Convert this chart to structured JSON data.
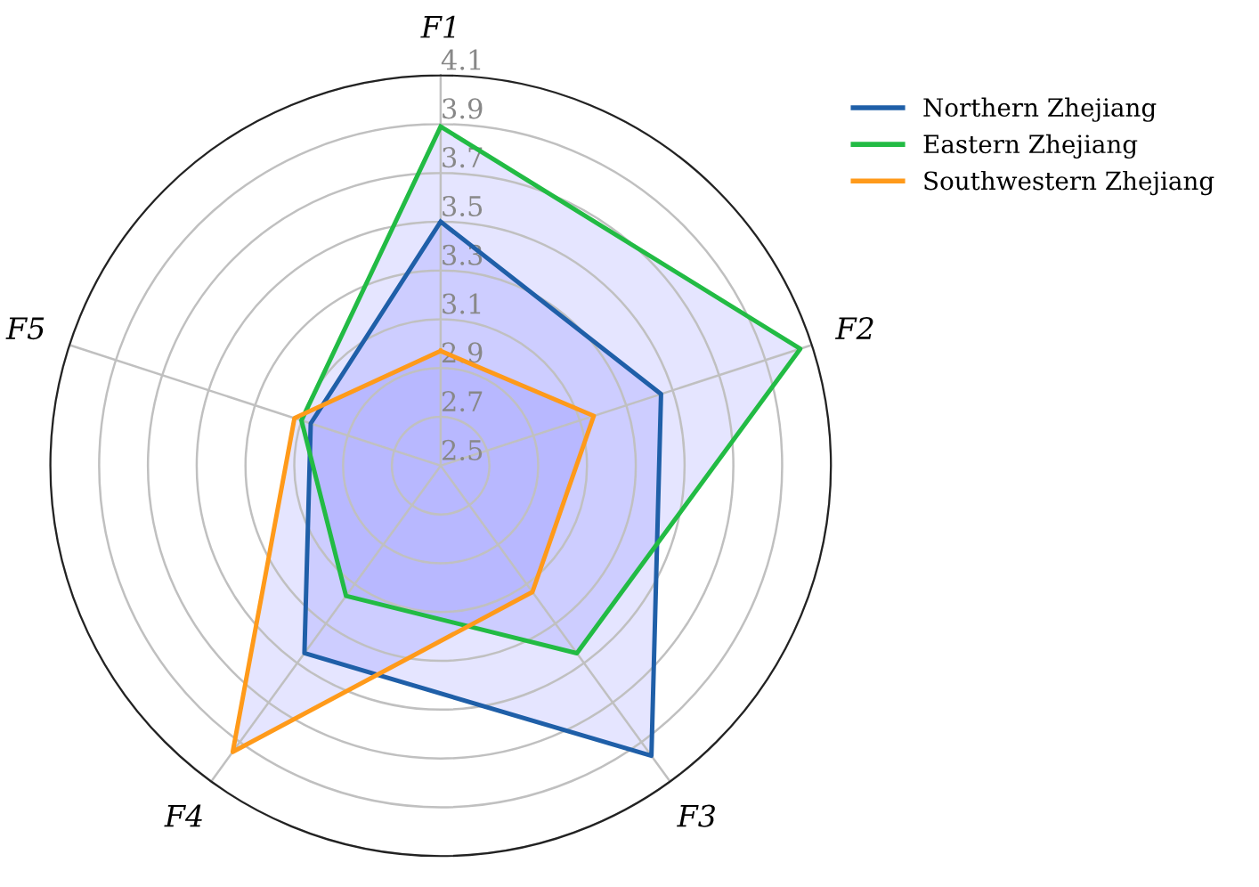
{
  "chart_data": {
    "type": "radar",
    "categories": [
      "F1",
      "F2",
      "F3",
      "F4",
      "F5"
    ],
    "ylim": [
      2.5,
      4.1
    ],
    "yticks": [
      2.5,
      2.7,
      2.9,
      3.1,
      3.3,
      3.5,
      3.7,
      3.9,
      4.1
    ],
    "grid": true,
    "legend": "top right",
    "series": [
      {
        "name": "Northern Zhejiang",
        "color": "#1f5fa8",
        "values": [
          3.5,
          3.45,
          3.97,
          3.45,
          3.06
        ]
      },
      {
        "name": "Eastern Zhejiang",
        "color": "#22bb44",
        "values": [
          3.89,
          4.05,
          3.45,
          3.16,
          3.1
        ]
      },
      {
        "name": "Southwestern Zhejiang",
        "color": "#ff9a1a",
        "values": [
          2.97,
          3.16,
          3.14,
          3.95,
          3.13
        ]
      }
    ]
  }
}
